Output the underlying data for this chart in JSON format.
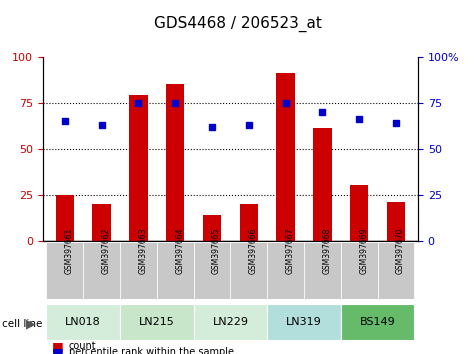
{
  "title": "GDS4468 / 206523_at",
  "samples": [
    "GSM397661",
    "GSM397662",
    "GSM397663",
    "GSM397664",
    "GSM397665",
    "GSM397666",
    "GSM397667",
    "GSM397668",
    "GSM397669",
    "GSM397670"
  ],
  "counts": [
    25,
    20,
    79,
    85,
    14,
    20,
    91,
    61,
    30,
    21
  ],
  "percentile_ranks": [
    65,
    63,
    75,
    75,
    62,
    63,
    75,
    70,
    66,
    64
  ],
  "cell_lines": [
    {
      "label": "LN018",
      "start": 0,
      "end": 2,
      "color": "#d4edda"
    },
    {
      "label": "LN215",
      "start": 2,
      "end": 4,
      "color": "#c8e6c9"
    },
    {
      "label": "LN229",
      "start": 4,
      "end": 6,
      "color": "#d4edda"
    },
    {
      "label": "LN319",
      "start": 6,
      "end": 8,
      "color": "#b2dfdb"
    },
    {
      "label": "BS149",
      "start": 8,
      "end": 10,
      "color": "#66bb6a"
    }
  ],
  "bar_color": "#cc0000",
  "dot_color": "#0000cc",
  "left_axis_color": "#cc0000",
  "right_axis_color": "#0000cc",
  "ylim": [
    0,
    100
  ],
  "yticks": [
    0,
    25,
    50,
    75,
    100
  ],
  "grid_color": "#000000",
  "title_fontsize": 11,
  "tick_label_fontsize": 7,
  "cell_line_label_color": "#000000",
  "legend_count_label": "count",
  "legend_pct_label": "percentile rank within the sample",
  "cell_line_row_label": "cell line"
}
